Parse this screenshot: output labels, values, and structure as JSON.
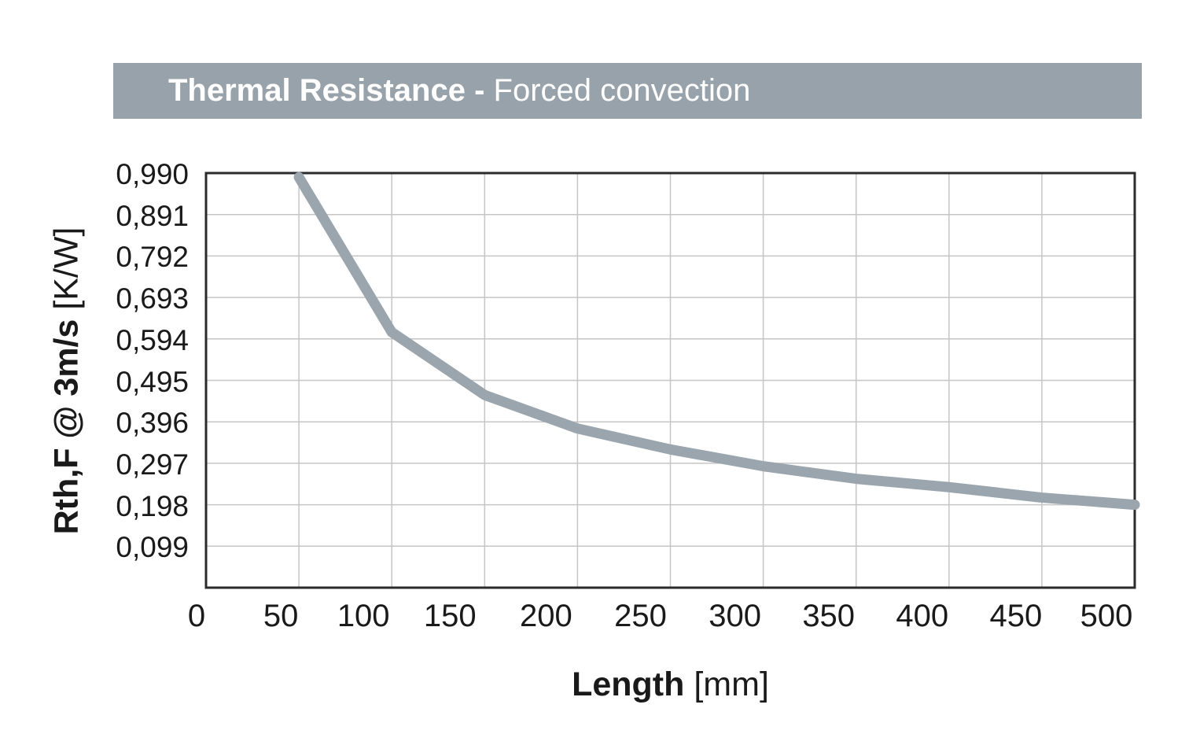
{
  "title_bar": {
    "bold": "Thermal Resistance -",
    "regular": "Forced convection"
  },
  "axes": {
    "x_title_bold": "Length",
    "x_title_unit": "[mm]",
    "y_title_bold": "Rth,F @ 3m/s",
    "y_title_unit": "[K/W]"
  },
  "chart_data": {
    "type": "line",
    "title": "Thermal Resistance - Forced convection",
    "xlabel": "Length [mm]",
    "ylabel": "Rth,F @ 3m/s [K/W]",
    "x": [
      50,
      100,
      150,
      200,
      250,
      300,
      350,
      400,
      450,
      500
    ],
    "y": [
      0.98,
      0.61,
      0.46,
      0.38,
      0.33,
      0.29,
      0.26,
      0.24,
      0.215,
      0.198
    ],
    "xlim": [
      0,
      500
    ],
    "ylim": [
      0,
      0.99
    ],
    "x_tick_values": [
      0,
      50,
      100,
      150,
      200,
      250,
      300,
      350,
      400,
      450,
      500
    ],
    "x_tick_labels": [
      "0",
      "50",
      "100",
      "150",
      "200",
      "250",
      "300",
      "350",
      "400",
      "450",
      "500"
    ],
    "y_tick_values": [
      0.99,
      0.891,
      0.792,
      0.693,
      0.594,
      0.495,
      0.396,
      0.297,
      0.198,
      0.099
    ],
    "y_tick_labels": [
      "0,990",
      "0,891",
      "0,792",
      "0,693",
      "0,594",
      "0,495",
      "0,396",
      "0,297",
      "0,198",
      "0,099"
    ],
    "grid": true,
    "legend": false,
    "colors": {
      "line": "#9aa5ad",
      "grid": "#c5c5c5",
      "border": "#2b2b2b",
      "header_bg": "#98a2aa",
      "header_text": "#ffffff",
      "text": "#1a1a1a"
    }
  }
}
